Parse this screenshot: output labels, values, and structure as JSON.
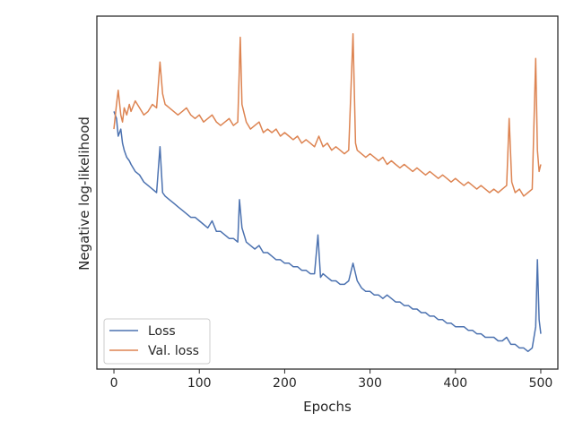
{
  "chart_data": {
    "type": "line",
    "title": "",
    "xlabel": "Epochs",
    "ylabel": "Negative log-likelihood",
    "xlim": [
      -20,
      520
    ],
    "ylim": [
      0,
      100
    ],
    "y_tick_labels_shown": false,
    "x_ticks": [
      0,
      100,
      200,
      300,
      400,
      500
    ],
    "x_tick_labels": [
      "0",
      "100",
      "200",
      "300",
      "400",
      "500"
    ],
    "grid": false,
    "legend_position": "lower-left",
    "series": [
      {
        "name": "Loss",
        "color": "#4c72b0",
        "points": [
          [
            0,
            73
          ],
          [
            3,
            71
          ],
          [
            5,
            66
          ],
          [
            8,
            68
          ],
          [
            10,
            64
          ],
          [
            12,
            62
          ],
          [
            15,
            60
          ],
          [
            18,
            59
          ],
          [
            20,
            58
          ],
          [
            25,
            56
          ],
          [
            30,
            55
          ],
          [
            35,
            53
          ],
          [
            40,
            52
          ],
          [
            45,
            51
          ],
          [
            50,
            50
          ],
          [
            54,
            63
          ],
          [
            57,
            50
          ],
          [
            60,
            49
          ],
          [
            65,
            48
          ],
          [
            70,
            47
          ],
          [
            75,
            46
          ],
          [
            80,
            45
          ],
          [
            85,
            44
          ],
          [
            90,
            43
          ],
          [
            95,
            43
          ],
          [
            100,
            42
          ],
          [
            105,
            41
          ],
          [
            110,
            40
          ],
          [
            115,
            42
          ],
          [
            120,
            39
          ],
          [
            125,
            39
          ],
          [
            130,
            38
          ],
          [
            135,
            37
          ],
          [
            140,
            37
          ],
          [
            145,
            36
          ],
          [
            147,
            48
          ],
          [
            150,
            40
          ],
          [
            155,
            36
          ],
          [
            160,
            35
          ],
          [
            165,
            34
          ],
          [
            170,
            35
          ],
          [
            175,
            33
          ],
          [
            180,
            33
          ],
          [
            185,
            32
          ],
          [
            190,
            31
          ],
          [
            195,
            31
          ],
          [
            200,
            30
          ],
          [
            205,
            30
          ],
          [
            210,
            29
          ],
          [
            215,
            29
          ],
          [
            220,
            28
          ],
          [
            225,
            28
          ],
          [
            230,
            27
          ],
          [
            235,
            27
          ],
          [
            239,
            38
          ],
          [
            242,
            26
          ],
          [
            245,
            27
          ],
          [
            250,
            26
          ],
          [
            255,
            25
          ],
          [
            260,
            25
          ],
          [
            265,
            24
          ],
          [
            270,
            24
          ],
          [
            275,
            25
          ],
          [
            280,
            30
          ],
          [
            285,
            25
          ],
          [
            290,
            23
          ],
          [
            295,
            22
          ],
          [
            300,
            22
          ],
          [
            305,
            21
          ],
          [
            310,
            21
          ],
          [
            315,
            20
          ],
          [
            320,
            21
          ],
          [
            325,
            20
          ],
          [
            330,
            19
          ],
          [
            335,
            19
          ],
          [
            340,
            18
          ],
          [
            345,
            18
          ],
          [
            350,
            17
          ],
          [
            355,
            17
          ],
          [
            360,
            16
          ],
          [
            365,
            16
          ],
          [
            370,
            15
          ],
          [
            375,
            15
          ],
          [
            380,
            14
          ],
          [
            385,
            14
          ],
          [
            390,
            13
          ],
          [
            395,
            13
          ],
          [
            400,
            12
          ],
          [
            405,
            12
          ],
          [
            410,
            12
          ],
          [
            415,
            11
          ],
          [
            420,
            11
          ],
          [
            425,
            10
          ],
          [
            430,
            10
          ],
          [
            435,
            9
          ],
          [
            440,
            9
          ],
          [
            445,
            9
          ],
          [
            450,
            8
          ],
          [
            455,
            8
          ],
          [
            460,
            9
          ],
          [
            465,
            7
          ],
          [
            470,
            7
          ],
          [
            475,
            6
          ],
          [
            480,
            6
          ],
          [
            485,
            5
          ],
          [
            490,
            6
          ],
          [
            494,
            12
          ],
          [
            496,
            31
          ],
          [
            498,
            14
          ],
          [
            500,
            10
          ]
        ]
      },
      {
        "name": "Val. loss",
        "color": "#dd8452",
        "points": [
          [
            0,
            68
          ],
          [
            3,
            75
          ],
          [
            5,
            79
          ],
          [
            8,
            72
          ],
          [
            10,
            70
          ],
          [
            12,
            74
          ],
          [
            15,
            72
          ],
          [
            18,
            75
          ],
          [
            20,
            73
          ],
          [
            25,
            76
          ],
          [
            30,
            74
          ],
          [
            35,
            72
          ],
          [
            40,
            73
          ],
          [
            45,
            75
          ],
          [
            50,
            74
          ],
          [
            54,
            87
          ],
          [
            57,
            78
          ],
          [
            60,
            75
          ],
          [
            65,
            74
          ],
          [
            70,
            73
          ],
          [
            75,
            72
          ],
          [
            80,
            73
          ],
          [
            85,
            74
          ],
          [
            90,
            72
          ],
          [
            95,
            71
          ],
          [
            100,
            72
          ],
          [
            105,
            70
          ],
          [
            110,
            71
          ],
          [
            115,
            72
          ],
          [
            120,
            70
          ],
          [
            125,
            69
          ],
          [
            130,
            70
          ],
          [
            135,
            71
          ],
          [
            140,
            69
          ],
          [
            145,
            70
          ],
          [
            148,
            94
          ],
          [
            150,
            75
          ],
          [
            155,
            70
          ],
          [
            160,
            68
          ],
          [
            165,
            69
          ],
          [
            170,
            70
          ],
          [
            175,
            67
          ],
          [
            180,
            68
          ],
          [
            185,
            67
          ],
          [
            190,
            68
          ],
          [
            195,
            66
          ],
          [
            200,
            67
          ],
          [
            205,
            66
          ],
          [
            210,
            65
          ],
          [
            215,
            66
          ],
          [
            220,
            64
          ],
          [
            225,
            65
          ],
          [
            230,
            64
          ],
          [
            235,
            63
          ],
          [
            240,
            66
          ],
          [
            245,
            63
          ],
          [
            250,
            64
          ],
          [
            255,
            62
          ],
          [
            260,
            63
          ],
          [
            265,
            62
          ],
          [
            270,
            61
          ],
          [
            275,
            62
          ],
          [
            280,
            95
          ],
          [
            283,
            64
          ],
          [
            285,
            62
          ],
          [
            290,
            61
          ],
          [
            295,
            60
          ],
          [
            300,
            61
          ],
          [
            305,
            60
          ],
          [
            310,
            59
          ],
          [
            315,
            60
          ],
          [
            320,
            58
          ],
          [
            325,
            59
          ],
          [
            330,
            58
          ],
          [
            335,
            57
          ],
          [
            340,
            58
          ],
          [
            345,
            57
          ],
          [
            350,
            56
          ],
          [
            355,
            57
          ],
          [
            360,
            56
          ],
          [
            365,
            55
          ],
          [
            370,
            56
          ],
          [
            375,
            55
          ],
          [
            380,
            54
          ],
          [
            385,
            55
          ],
          [
            390,
            54
          ],
          [
            395,
            53
          ],
          [
            400,
            54
          ],
          [
            405,
            53
          ],
          [
            410,
            52
          ],
          [
            415,
            53
          ],
          [
            420,
            52
          ],
          [
            425,
            51
          ],
          [
            430,
            52
          ],
          [
            435,
            51
          ],
          [
            440,
            50
          ],
          [
            445,
            51
          ],
          [
            450,
            50
          ],
          [
            455,
            51
          ],
          [
            460,
            52
          ],
          [
            463,
            71
          ],
          [
            466,
            53
          ],
          [
            470,
            50
          ],
          [
            475,
            51
          ],
          [
            480,
            49
          ],
          [
            485,
            50
          ],
          [
            490,
            51
          ],
          [
            494,
            88
          ],
          [
            496,
            62
          ],
          [
            498,
            56
          ],
          [
            500,
            58
          ]
        ]
      }
    ]
  }
}
